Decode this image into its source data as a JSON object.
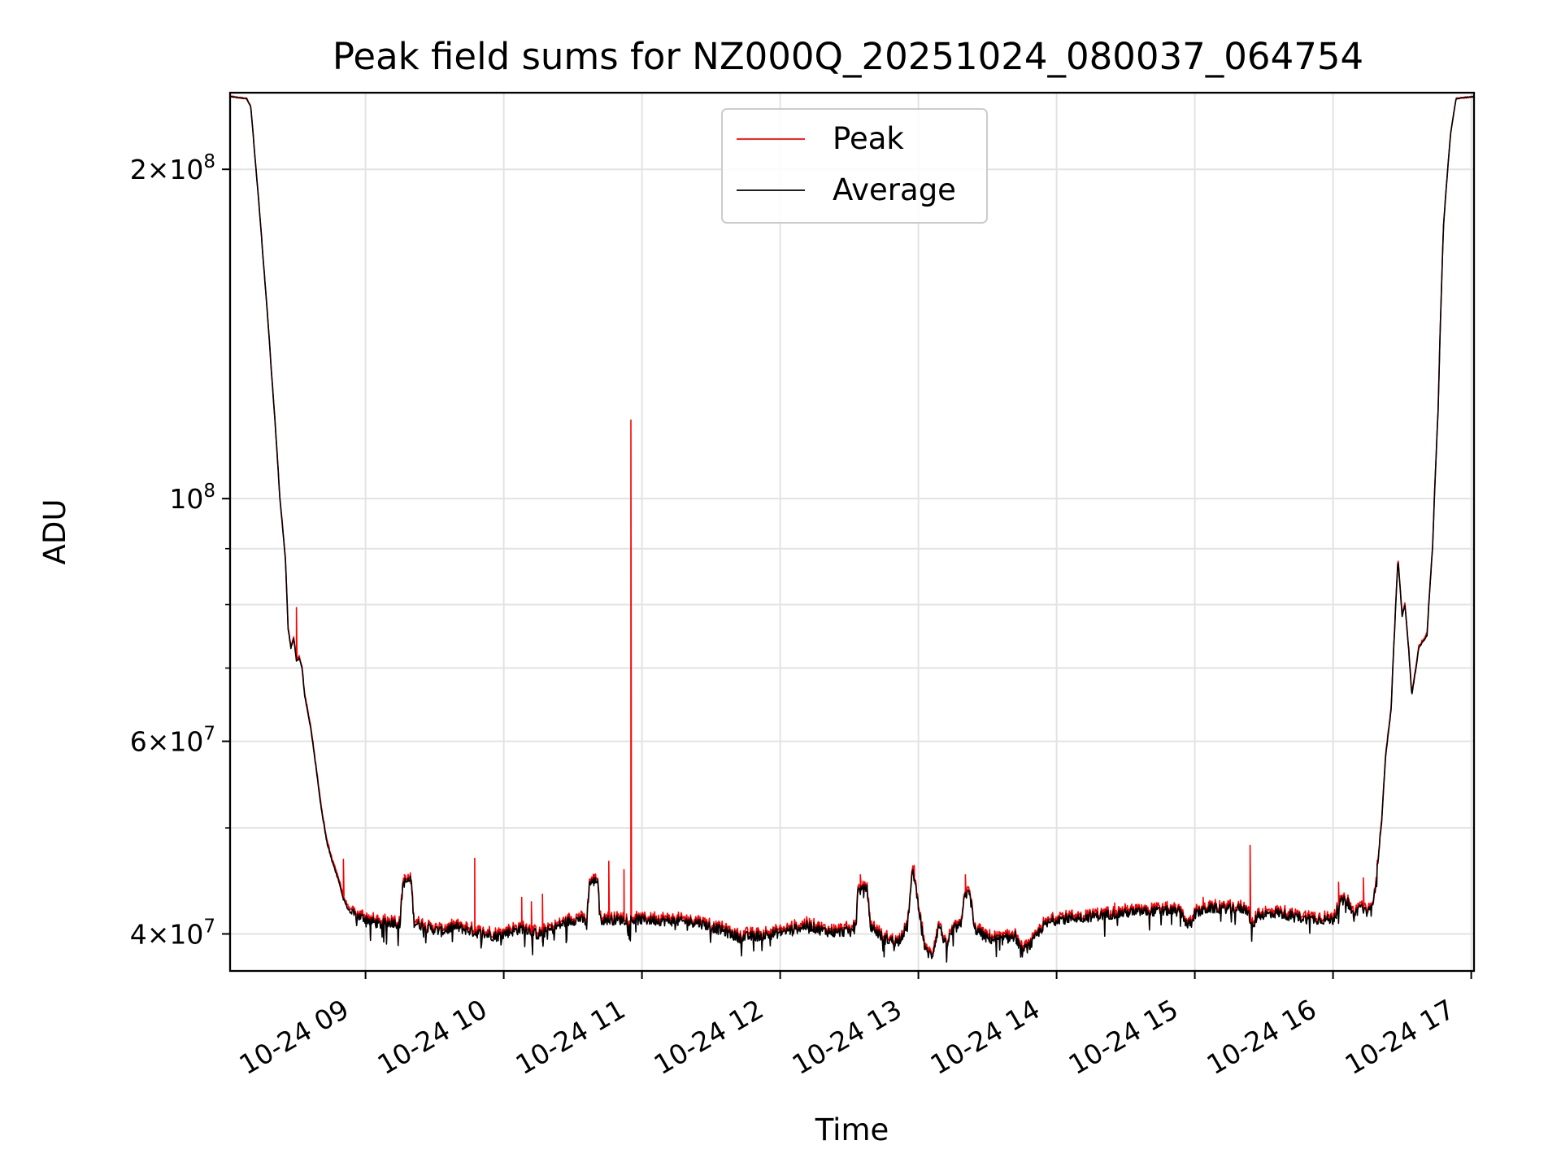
{
  "chart_data": {
    "type": "line",
    "title": "Peak field sums for NZ000Q_20251024_080037_064754",
    "xlabel": "Time",
    "ylabel": "ADU",
    "yscale": "log",
    "ylim": [
      37000000,
      235000000
    ],
    "xlim_hours": [
      8.02,
      17.02
    ],
    "grid": true,
    "legend_position": "upper center",
    "x_ticks": [
      {
        "hour": 9,
        "label": "10-24 09"
      },
      {
        "hour": 10,
        "label": "10-24 10"
      },
      {
        "hour": 11,
        "label": "10-24 11"
      },
      {
        "hour": 12,
        "label": "10-24 12"
      },
      {
        "hour": 13,
        "label": "10-24 13"
      },
      {
        "hour": 14,
        "label": "10-24 14"
      },
      {
        "hour": 15,
        "label": "10-24 15"
      },
      {
        "hour": 16,
        "label": "10-24 16"
      },
      {
        "hour": 17,
        "label": "10-24 17"
      }
    ],
    "y_ticks": [
      {
        "value": 40000000,
        "mant": "4",
        "exp": "7"
      },
      {
        "value": 60000000,
        "mant": "6",
        "exp": "7"
      },
      {
        "value": 100000000,
        "mant": "",
        "exp": "8"
      },
      {
        "value": 200000000,
        "mant": "2",
        "exp": "8"
      }
    ],
    "y_minor_ticks": [
      50000000,
      70000000,
      80000000,
      90000000
    ],
    "series": [
      {
        "name": "Average",
        "color": "#000000",
        "points": [
          [
            8.02,
            233
          ],
          [
            8.14,
            232
          ],
          [
            8.17,
            228
          ],
          [
            8.2,
            205
          ],
          [
            8.26,
            165
          ],
          [
            8.32,
            130
          ],
          [
            8.38,
            100
          ],
          [
            8.42,
            88
          ],
          [
            8.44,
            76
          ],
          [
            8.46,
            73
          ],
          [
            8.48,
            74.5
          ],
          [
            8.5,
            71
          ],
          [
            8.52,
            71.5
          ],
          [
            8.54,
            70
          ],
          [
            8.56,
            66
          ],
          [
            8.6,
            62
          ],
          [
            8.64,
            57
          ],
          [
            8.68,
            52
          ],
          [
            8.72,
            48.5
          ],
          [
            8.76,
            46.5
          ],
          [
            8.8,
            45
          ],
          [
            8.84,
            43
          ],
          [
            8.88,
            42
          ],
          [
            8.92,
            41.6
          ],
          [
            9.0,
            41.3
          ],
          [
            9.1,
            40.8
          ],
          [
            9.2,
            41
          ],
          [
            9.25,
            40.8
          ],
          [
            9.27,
            44.5
          ],
          [
            9.33,
            44.8
          ],
          [
            9.35,
            41
          ],
          [
            9.45,
            40.5
          ],
          [
            9.55,
            40.2
          ],
          [
            9.65,
            40.6
          ],
          [
            9.8,
            40.1
          ],
          [
            9.95,
            39.8
          ],
          [
            10.05,
            40.2
          ],
          [
            10.15,
            40.5
          ],
          [
            10.25,
            39.9
          ],
          [
            10.35,
            40.4
          ],
          [
            10.45,
            41
          ],
          [
            10.55,
            41.3
          ],
          [
            10.6,
            41
          ],
          [
            10.62,
            44.5
          ],
          [
            10.68,
            44.8
          ],
          [
            10.7,
            41.2
          ],
          [
            10.85,
            41.2
          ],
          [
            11.0,
            41.2
          ],
          [
            11.2,
            41.1
          ],
          [
            11.4,
            41
          ],
          [
            11.6,
            40.2
          ],
          [
            11.7,
            39.7
          ],
          [
            11.8,
            39.8
          ],
          [
            11.9,
            39.9
          ],
          [
            12.0,
            40.1
          ],
          [
            12.1,
            40.4
          ],
          [
            12.2,
            40.7
          ],
          [
            12.3,
            40.3
          ],
          [
            12.4,
            40.1
          ],
          [
            12.5,
            40.3
          ],
          [
            12.55,
            40.7
          ],
          [
            12.56,
            43.8
          ],
          [
            12.63,
            44
          ],
          [
            12.65,
            40.7
          ],
          [
            12.75,
            39.6
          ],
          [
            12.85,
            39.3
          ],
          [
            12.92,
            40.6
          ],
          [
            12.96,
            45.8
          ],
          [
            13.0,
            42.5
          ],
          [
            13.05,
            38.6
          ],
          [
            13.1,
            38.2
          ],
          [
            13.15,
            40.8
          ],
          [
            13.2,
            38.9
          ],
          [
            13.25,
            40.4
          ],
          [
            13.31,
            40.7
          ],
          [
            13.33,
            43.5
          ],
          [
            13.38,
            43.5
          ],
          [
            13.4,
            40.5
          ],
          [
            13.5,
            39.6
          ],
          [
            13.6,
            39.5
          ],
          [
            13.7,
            39.8
          ],
          [
            13.75,
            38.5
          ],
          [
            13.82,
            39.2
          ],
          [
            13.9,
            40.6
          ],
          [
            14.0,
            41.3
          ],
          [
            14.2,
            41.4
          ],
          [
            14.4,
            41.7
          ],
          [
            14.6,
            41.9
          ],
          [
            14.8,
            42
          ],
          [
            14.9,
            41.9
          ],
          [
            14.95,
            40.6
          ],
          [
            15.0,
            41.7
          ],
          [
            15.1,
            42.2
          ],
          [
            15.3,
            42.2
          ],
          [
            15.38,
            42.1
          ],
          [
            15.42,
            40.4
          ],
          [
            15.45,
            41.6
          ],
          [
            15.6,
            41.8
          ],
          [
            15.8,
            41.3
          ],
          [
            16.0,
            41.2
          ],
          [
            16.05,
            42.7
          ],
          [
            16.1,
            43
          ],
          [
            16.15,
            41.5
          ],
          [
            16.2,
            42.5
          ],
          [
            16.25,
            41.6
          ],
          [
            16.3,
            43.4
          ],
          [
            16.35,
            50
          ],
          [
            16.38,
            58
          ],
          [
            16.42,
            64
          ],
          [
            16.45,
            78
          ],
          [
            16.47,
            88
          ],
          [
            16.5,
            78
          ],
          [
            16.52,
            80
          ],
          [
            16.55,
            72
          ],
          [
            16.57,
            66
          ],
          [
            16.6,
            70
          ],
          [
            16.62,
            73
          ],
          [
            16.65,
            74
          ],
          [
            16.68,
            75
          ],
          [
            16.72,
            90
          ],
          [
            16.76,
            120
          ],
          [
            16.8,
            178
          ],
          [
            16.85,
            215
          ],
          [
            16.89,
            232
          ],
          [
            17.02,
            233
          ]
        ]
      },
      {
        "name": "Peak",
        "color": "#ff0000",
        "spikes": [
          [
            8.5,
            79.5
          ],
          [
            8.84,
            46.8
          ],
          [
            9.28,
            45.3
          ],
          [
            9.79,
            46.9
          ],
          [
            10.13,
            43.2
          ],
          [
            10.2,
            42.8
          ],
          [
            10.28,
            43.5
          ],
          [
            10.65,
            45
          ],
          [
            10.76,
            46.6
          ],
          [
            10.87,
            45.8
          ],
          [
            10.92,
            118
          ],
          [
            12.58,
            45.3
          ],
          [
            12.97,
            46.2
          ],
          [
            13.34,
            45.3
          ],
          [
            14.42,
            42.7
          ],
          [
            15.06,
            43.2
          ],
          [
            15.4,
            48.2
          ],
          [
            16.04,
            44.6
          ],
          [
            16.22,
            45
          ]
        ]
      }
    ]
  }
}
